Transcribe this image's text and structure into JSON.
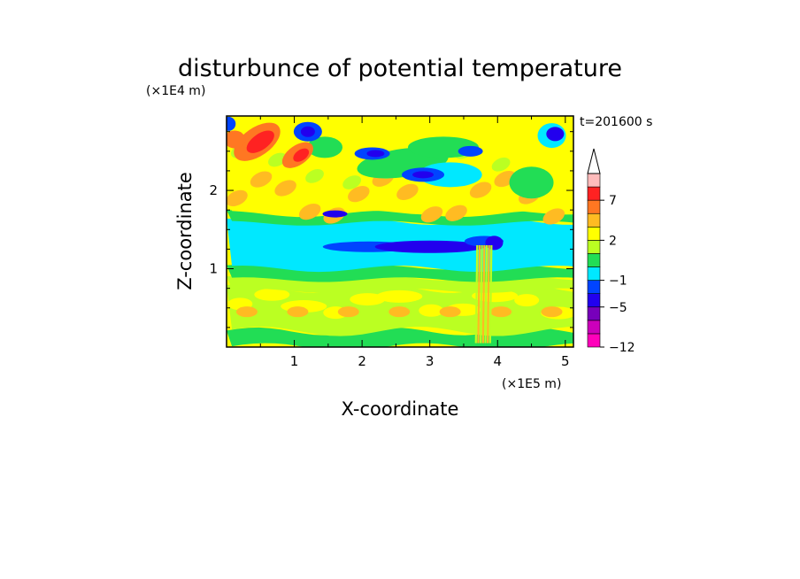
{
  "chart_data": {
    "type": "heatmap",
    "title": "disturbunce of potential temperature",
    "time_label": "t=201600 s",
    "xlabel": "X-coordinate",
    "ylabel": "Z-coordinate",
    "x_unit": "(×1E5 m)",
    "y_unit": "(×1E4 m)",
    "xlim": [
      0,
      5.12
    ],
    "ylim": [
      0,
      2.95
    ],
    "x_ticks": [
      "1",
      "2",
      "3",
      "4",
      "5"
    ],
    "y_ticks": [
      "1",
      "2"
    ],
    "grid": false,
    "legend": "colorbar-right",
    "colorbar": {
      "levels": [
        -12,
        -9,
        -7,
        -5,
        -3,
        -1,
        0,
        1,
        2,
        3,
        5,
        7,
        9,
        12
      ],
      "labels": [
        "7",
        "2",
        "−1",
        "−5",
        "−12"
      ],
      "colors": [
        "#ff00bb",
        "#cc00bb",
        "#7700bb",
        "#2200ee",
        "#0044ff",
        "#00e8ff",
        "#22dd55",
        "#bbff22",
        "#ffff00",
        "#ffbb22",
        "#ff7722",
        "#ff2222",
        "#ffbbbb"
      ]
    }
  }
}
